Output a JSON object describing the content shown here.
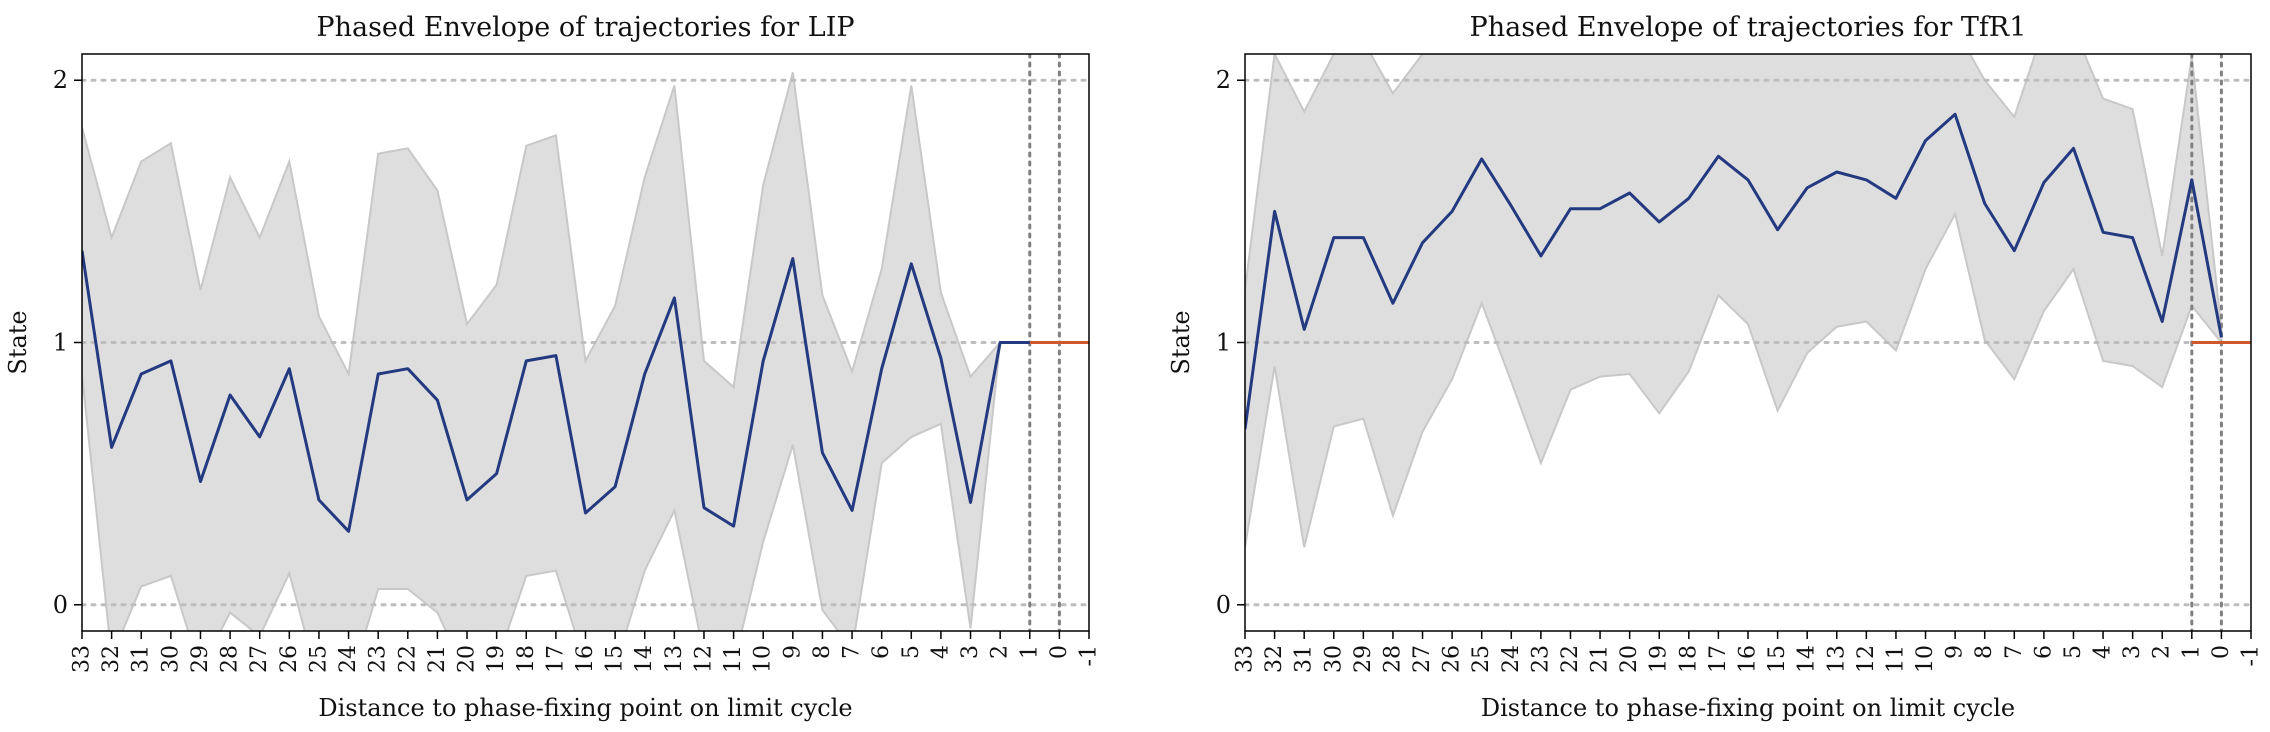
{
  "colors": {
    "mean_line": "#243a80",
    "envelope_fill": "#dedede",
    "envelope_edge": "#c8c8c8",
    "limit_cycle_line": "#d0582a",
    "gridline": "#bdbdbd",
    "marker_line": "#808080"
  },
  "chart_data": [
    {
      "type": "area",
      "title": "Phased Envelope of trajectories for LIP",
      "xlabel": "Distance to phase-fixing point on limit cycle",
      "ylabel": "State",
      "xlim": [
        33,
        -1
      ],
      "ylim": [
        -0.1,
        2.1
      ],
      "xticks": [
        33,
        32,
        31,
        30,
        29,
        28,
        27,
        26,
        25,
        24,
        23,
        22,
        21,
        20,
        19,
        18,
        17,
        16,
        15,
        14,
        13,
        12,
        11,
        10,
        9,
        8,
        7,
        6,
        5,
        4,
        3,
        2,
        1,
        0,
        -1
      ],
      "yticks": [
        0,
        1,
        2
      ],
      "hlines": [
        0,
        1,
        2
      ],
      "vlines": [
        1,
        0
      ],
      "grid": false,
      "x": [
        33,
        32,
        31,
        30,
        29,
        28,
        27,
        26,
        25,
        24,
        23,
        22,
        21,
        20,
        19,
        18,
        17,
        16,
        15,
        14,
        13,
        12,
        11,
        10,
        9,
        8,
        7,
        6,
        5,
        4,
        3,
        2,
        1
      ],
      "mean": [
        1.35,
        0.6,
        0.88,
        0.93,
        0.47,
        0.8,
        0.64,
        0.9,
        0.4,
        0.28,
        0.88,
        0.9,
        0.78,
        0.4,
        0.5,
        0.93,
        0.95,
        0.35,
        0.45,
        0.88,
        1.17,
        0.37,
        0.3,
        0.93,
        1.32,
        0.58,
        0.36,
        0.9,
        1.3,
        0.94,
        0.39,
        1.0,
        1.0
      ],
      "upper": [
        1.82,
        1.4,
        1.69,
        1.76,
        1.2,
        1.63,
        1.4,
        1.69,
        1.1,
        0.88,
        1.72,
        1.74,
        1.58,
        1.07,
        1.22,
        1.75,
        1.79,
        0.93,
        1.14,
        1.63,
        1.98,
        0.93,
        0.83,
        1.6,
        2.03,
        1.18,
        0.89,
        1.28,
        1.98,
        1.19,
        0.87,
        1.0,
        1.0
      ],
      "lower": [
        0.88,
        -0.2,
        0.07,
        0.11,
        -0.25,
        -0.03,
        -0.12,
        0.12,
        -0.3,
        -0.32,
        0.06,
        0.06,
        -0.03,
        -0.27,
        -0.22,
        0.11,
        0.13,
        -0.23,
        -0.24,
        0.13,
        0.36,
        -0.19,
        -0.23,
        0.24,
        0.61,
        -0.02,
        -0.17,
        0.54,
        0.64,
        0.69,
        -0.09,
        1.0,
        1.0
      ],
      "limit_cycle": {
        "x": [
          1,
          -1
        ],
        "y": [
          1.0,
          1.0
        ]
      }
    },
    {
      "type": "area",
      "title": "Phased Envelope of trajectories for TfR1",
      "xlabel": "Distance to phase-fixing point on limit cycle",
      "ylabel": "State",
      "xlim": [
        33,
        -1
      ],
      "ylim": [
        -0.1,
        2.1
      ],
      "xticks": [
        33,
        32,
        31,
        30,
        29,
        28,
        27,
        26,
        25,
        24,
        23,
        22,
        21,
        20,
        19,
        18,
        17,
        16,
        15,
        14,
        13,
        12,
        11,
        10,
        9,
        8,
        7,
        6,
        5,
        4,
        3,
        2,
        1,
        0,
        -1
      ],
      "yticks": [
        0,
        1,
        2
      ],
      "hlines": [
        0,
        1,
        2
      ],
      "vlines": [
        1,
        0
      ],
      "grid": false,
      "x": [
        33,
        32,
        31,
        30,
        29,
        28,
        27,
        26,
        25,
        24,
        23,
        22,
        21,
        20,
        19,
        18,
        17,
        16,
        15,
        14,
        13,
        12,
        11,
        10,
        9,
        8,
        7,
        6,
        5,
        4,
        3,
        2,
        1,
        0
      ],
      "mean": [
        0.67,
        1.5,
        1.05,
        1.4,
        1.4,
        1.15,
        1.38,
        1.5,
        1.7,
        1.52,
        1.33,
        1.51,
        1.51,
        1.57,
        1.46,
        1.55,
        1.71,
        1.62,
        1.43,
        1.59,
        1.65,
        1.62,
        1.55,
        1.77,
        1.87,
        1.53,
        1.35,
        1.61,
        1.74,
        1.42,
        1.4,
        1.08,
        1.62,
        1.02
      ],
      "upper": [
        1.2,
        2.1,
        1.88,
        2.1,
        2.15,
        1.95,
        2.1,
        2.2,
        2.2,
        2.2,
        2.15,
        2.2,
        2.2,
        2.2,
        2.2,
        2.2,
        2.2,
        2.2,
        2.2,
        2.2,
        2.2,
        2.2,
        2.2,
        2.2,
        2.2,
        2.0,
        1.86,
        2.2,
        2.2,
        1.93,
        1.89,
        1.33,
        2.09,
        1.05
      ],
      "lower": [
        0.22,
        0.91,
        0.22,
        0.68,
        0.71,
        0.34,
        0.66,
        0.86,
        1.15,
        0.85,
        0.54,
        0.82,
        0.87,
        0.88,
        0.73,
        0.89,
        1.18,
        1.07,
        0.74,
        0.96,
        1.06,
        1.08,
        0.97,
        1.28,
        1.49,
        1.01,
        0.86,
        1.12,
        1.28,
        0.93,
        0.91,
        0.83,
        1.14,
        1.0
      ],
      "limit_cycle": {
        "x": [
          1,
          -1
        ],
        "y": [
          1.0,
          1.0
        ]
      }
    }
  ]
}
